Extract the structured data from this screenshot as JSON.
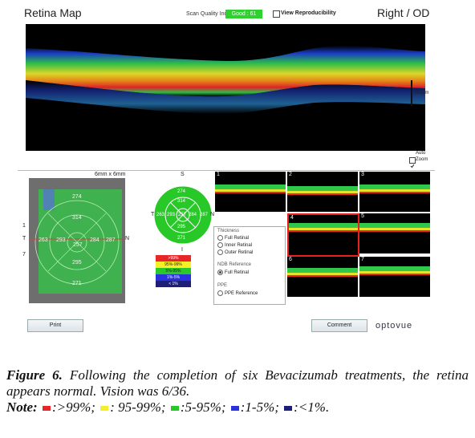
{
  "window": {
    "title": "Retina Map",
    "eye": "Right / OD"
  },
  "quality": {
    "label": "Scan Quality Index",
    "value": "Good : 61",
    "color": "#2fd12f"
  },
  "reproducibility": {
    "label": "View Reproducibility",
    "checked": false
  },
  "scan": {
    "scale_label": "250µm",
    "auto_label": "Auto",
    "zoom_label": "Zoom",
    "zoom_checked": true
  },
  "fundus": {
    "size_label": "6mm x 6mm",
    "left_labels": [
      "1",
      "T",
      "7"
    ],
    "right_label": "N",
    "values": {
      "superior": "274",
      "inner_superior": "314",
      "temporal_outer": "263",
      "temporal_inner": "293",
      "center": "257",
      "nasal_inner": "284",
      "nasal_outer": "287",
      "inner_inferior": "295",
      "inferior": "271"
    }
  },
  "map": {
    "top": "S",
    "bottom": "I",
    "left": "T",
    "right": "N",
    "values": {
      "superior": "274",
      "inner_superior": "314",
      "temporal_outer": "263",
      "temporal_inner": "293",
      "center": "257",
      "nasal_inner": "284",
      "nasal_outer": "287",
      "inner_inferior": "295",
      "inferior": "271"
    }
  },
  "legend": [
    {
      "label": ">99%",
      "color": "#e8262a"
    },
    {
      "label": "95%-99%",
      "color": "#f7ee2a"
    },
    {
      "label": "5%-95%",
      "color": "#28c828"
    },
    {
      "label": "1%-5%",
      "color": "#2a32e0"
    },
    {
      "label": "< 1%",
      "color": "#1c1e7a"
    }
  ],
  "bscans": {
    "numbers": [
      "1",
      "2",
      "3",
      "4",
      "5",
      "6",
      "7"
    ],
    "selected": "4"
  },
  "options": {
    "thickness_head": "Thickness",
    "thickness": [
      "Full Retinal",
      "Inner Retinal",
      "Outer Retinal"
    ],
    "nds_head": "NDB Reference",
    "nds": [
      "Full Retinal"
    ],
    "ppe_head": "PPE",
    "ppe": [
      "PPE Reference"
    ]
  },
  "buttons": {
    "print": "Print",
    "comment": "Comment"
  },
  "brand": "optovue",
  "caption": {
    "fig": "Figure 6.",
    "text": " Following the completion of six Bevacizumab treatments, the retina appears normal. Vision was 6/36.",
    "note_label": "Note:",
    "items": [
      {
        "color": "#e8262a",
        "text": ":>99%;"
      },
      {
        "color": "#f7ee2a",
        "text": ": 95-99%;"
      },
      {
        "color": "#28c828",
        "text": ":5-95%;"
      },
      {
        "color": "#2a32e0",
        "text": ":1-5%;"
      },
      {
        "color": "#1c1e7a",
        "text": ":<1%."
      }
    ]
  }
}
